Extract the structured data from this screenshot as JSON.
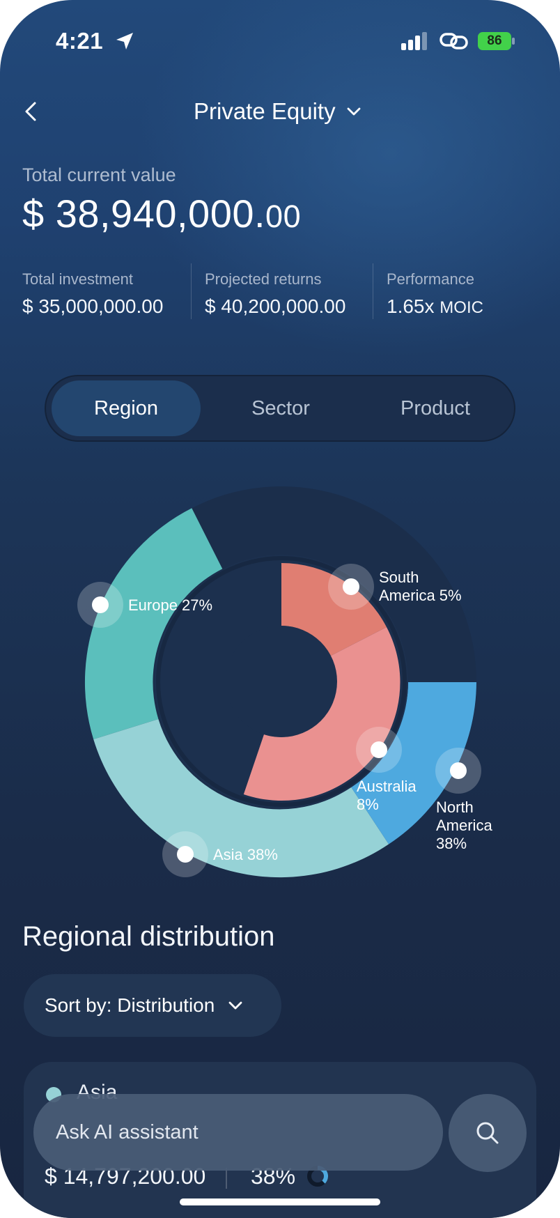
{
  "status_bar": {
    "time": "4:21",
    "battery": "86"
  },
  "header": {
    "title": "Private Equity"
  },
  "summary": {
    "total_label": "Total current value",
    "total_main": "$ 38,940,000.",
    "total_cents": "00",
    "stats": [
      {
        "label": "Total investment",
        "value": "$ 35,000,000.00"
      },
      {
        "label": "Projected returns",
        "value": "$ 40,200,000.00"
      },
      {
        "label": "Performance",
        "value": "1.65x",
        "unit": "MOIC"
      }
    ]
  },
  "tabs": {
    "active": "Region",
    "items": [
      "Region",
      "Sector",
      "Product"
    ]
  },
  "chart_data": {
    "type": "pie",
    "series": [
      {
        "name": "Europe",
        "label": "Europe 27%",
        "value": 27,
        "color": "#5bbfbc"
      },
      {
        "name": "Asia",
        "label": "Asia 38%",
        "value": 38,
        "color": "#96d2d6"
      },
      {
        "name": "North America",
        "label_lines": [
          "North",
          "America",
          "38%"
        ],
        "value": 38,
        "color": "#4ea9df"
      },
      {
        "name": "South America",
        "label_lines": [
          "South",
          "America 5%"
        ],
        "value": 5,
        "color": "#e07e72"
      },
      {
        "name": "Australia",
        "label_lines": [
          "Australia",
          "8%"
        ],
        "value": 8,
        "color": "#ea9190"
      }
    ]
  },
  "section": {
    "title": "Regional distribution",
    "sort_label": "Sort by: Distribution"
  },
  "card": {
    "name": "Asia",
    "value": "$ 14,797,200.00",
    "percent": "38%",
    "color": "#96d2d6"
  },
  "ai": {
    "placeholder": "Ask AI assistant"
  }
}
